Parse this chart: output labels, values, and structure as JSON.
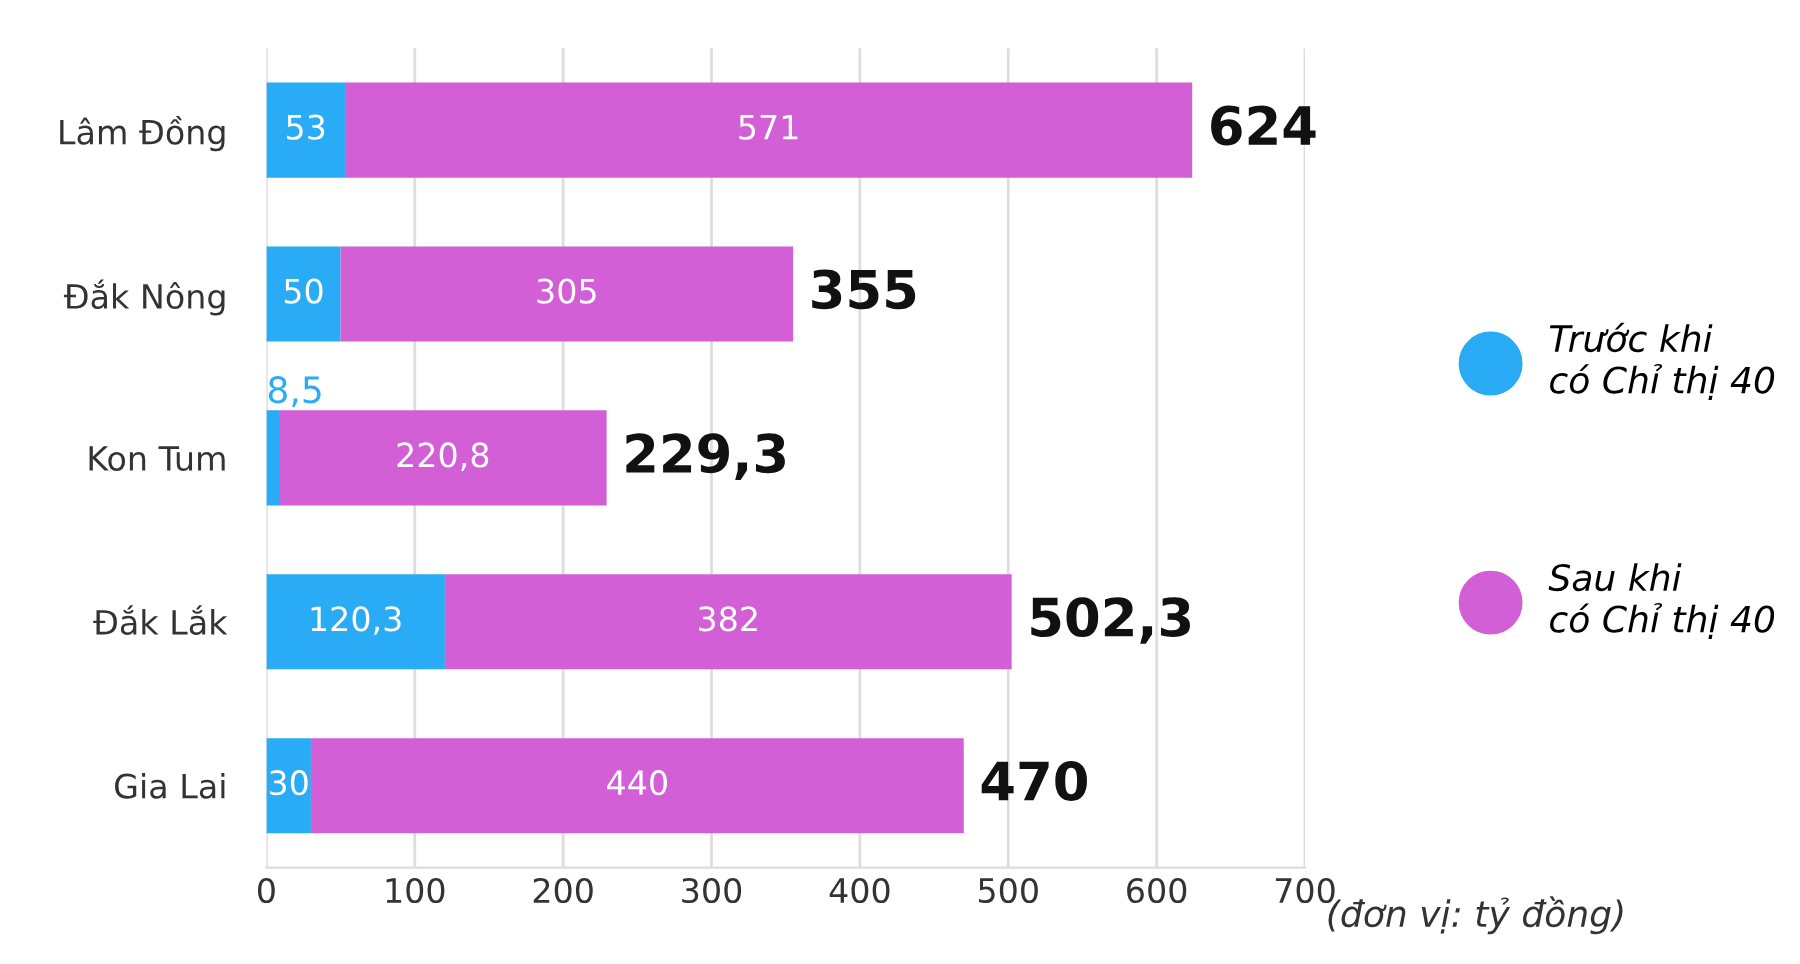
{
  "chart_data": {
    "type": "bar",
    "orientation": "horizontal",
    "stacked": true,
    "categories": [
      "Lâm Đồng",
      "Đắk Nông",
      "Kon Tum",
      "Đắk Lắk",
      "Gia Lai"
    ],
    "series": [
      {
        "name": "Trước khi\ncó Chỉ thị 40",
        "color": "#29abf5",
        "values": [
          53,
          50,
          8.5,
          120.3,
          30
        ],
        "value_labels": [
          "53",
          "50",
          "8,5",
          "120,3",
          "30"
        ]
      },
      {
        "name": "Sau khi\ncó Chỉ thị 40",
        "color": "#d35fd6",
        "values": [
          571,
          305,
          220.8,
          382,
          440
        ],
        "value_labels": [
          "571",
          "305",
          "220,8",
          "382",
          "440"
        ]
      }
    ],
    "totals": [
      "624",
      "355",
      "229,3",
      "502,3",
      "470"
    ],
    "xlim": [
      0,
      700
    ],
    "xticks": [
      0,
      100,
      200,
      300,
      400,
      500,
      600,
      700
    ],
    "xlabel": "(đơn vị: tỷ đồng)",
    "grid": "x",
    "legend": "right"
  }
}
